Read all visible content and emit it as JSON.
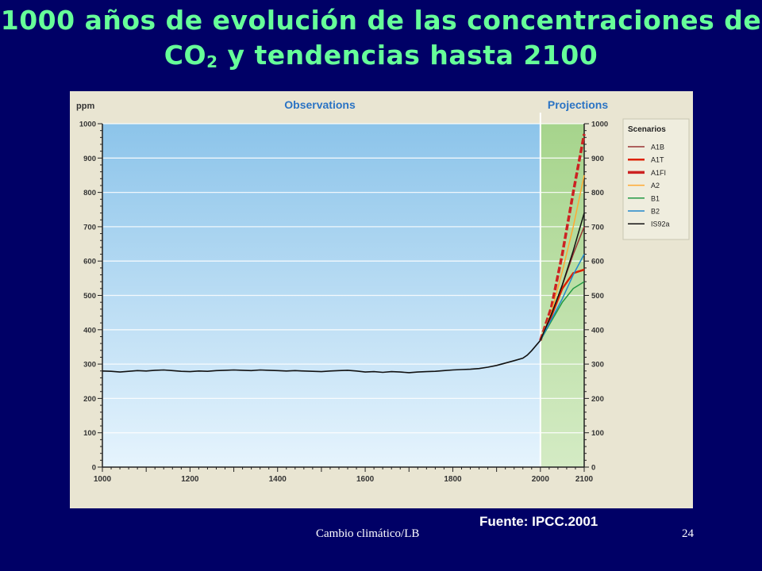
{
  "slide": {
    "title_line1": "1000 años de evolución de las concentraciones de",
    "title_line2_pre": "CO",
    "title_line2_sub": "2",
    "title_line2_post": " y tendencias hasta 2100",
    "source": "Fuente: IPCC.2001",
    "footer_text": "Cambio climático/LB",
    "page_number": "24",
    "background_color": "#000066",
    "title_color": "#66ff99"
  },
  "chart_data": {
    "type": "line",
    "ylabel": "ppm",
    "region_labels": {
      "observations": "Observations",
      "projections": "Projections"
    },
    "xlim": [
      1000,
      2100
    ],
    "ylim": [
      0,
      1000
    ],
    "x_ticks": [
      1000,
      1200,
      1400,
      1600,
      1800,
      2000,
      2100
    ],
    "y_ticks": [
      0,
      100,
      200,
      300,
      400,
      500,
      600,
      700,
      800,
      900,
      1000
    ],
    "projection_start": 2000,
    "grid": true,
    "legend_title": "Scenarios",
    "legend_position": "top-right",
    "observations": {
      "x": [
        1000,
        1020,
        1040,
        1060,
        1080,
        1100,
        1120,
        1140,
        1160,
        1180,
        1200,
        1220,
        1240,
        1260,
        1280,
        1300,
        1320,
        1340,
        1360,
        1380,
        1400,
        1420,
        1440,
        1460,
        1480,
        1500,
        1520,
        1540,
        1560,
        1580,
        1600,
        1620,
        1640,
        1660,
        1680,
        1700,
        1720,
        1740,
        1760,
        1780,
        1800,
        1820,
        1840,
        1860,
        1880,
        1900,
        1920,
        1940,
        1960,
        1970,
        1980,
        1990,
        2000
      ],
      "y": [
        280,
        279,
        277,
        279,
        281,
        280,
        282,
        283,
        281,
        279,
        278,
        280,
        279,
        281,
        282,
        283,
        282,
        281,
        283,
        282,
        281,
        280,
        281,
        280,
        279,
        278,
        280,
        281,
        282,
        280,
        277,
        278,
        276,
        278,
        277,
        275,
        277,
        278,
        279,
        281,
        283,
        284,
        285,
        287,
        291,
        296,
        303,
        310,
        317,
        326,
        339,
        354,
        369
      ]
    },
    "series": [
      {
        "name": "A1B",
        "color": "#993333",
        "width": 1.5,
        "dash": "",
        "x": [
          2000,
          2025,
          2050,
          2075,
          2100
        ],
        "y": [
          369,
          440,
          530,
          620,
          700
        ]
      },
      {
        "name": "A1T",
        "color": "#dd2200",
        "width": 2.5,
        "dash": "",
        "x": [
          2000,
          2025,
          2050,
          2075,
          2100
        ],
        "y": [
          369,
          440,
          520,
          565,
          575
        ]
      },
      {
        "name": "A1FI",
        "color": "#cc2222",
        "width": 3.5,
        "dash": "8,3",
        "x": [
          2000,
          2025,
          2050,
          2075,
          2100
        ],
        "y": [
          369,
          465,
          620,
          800,
          970
        ]
      },
      {
        "name": "A2",
        "color": "#ffaa33",
        "width": 1.5,
        "dash": "",
        "x": [
          2000,
          2025,
          2050,
          2075,
          2100
        ],
        "y": [
          369,
          450,
          570,
          700,
          850
        ]
      },
      {
        "name": "B1",
        "color": "#229944",
        "width": 1.5,
        "dash": "",
        "x": [
          2000,
          2025,
          2050,
          2075,
          2100
        ],
        "y": [
          369,
          425,
          480,
          520,
          540
        ]
      },
      {
        "name": "B2",
        "color": "#2288cc",
        "width": 1.5,
        "dash": "",
        "x": [
          2000,
          2025,
          2050,
          2075,
          2100
        ],
        "y": [
          369,
          430,
          490,
          560,
          620
        ]
      },
      {
        "name": "IS92a",
        "color": "#111111",
        "width": 1.5,
        "dash": "",
        "x": [
          2000,
          2025,
          2050,
          2075,
          2100
        ],
        "y": [
          369,
          445,
          530,
          630,
          740
        ]
      }
    ]
  }
}
